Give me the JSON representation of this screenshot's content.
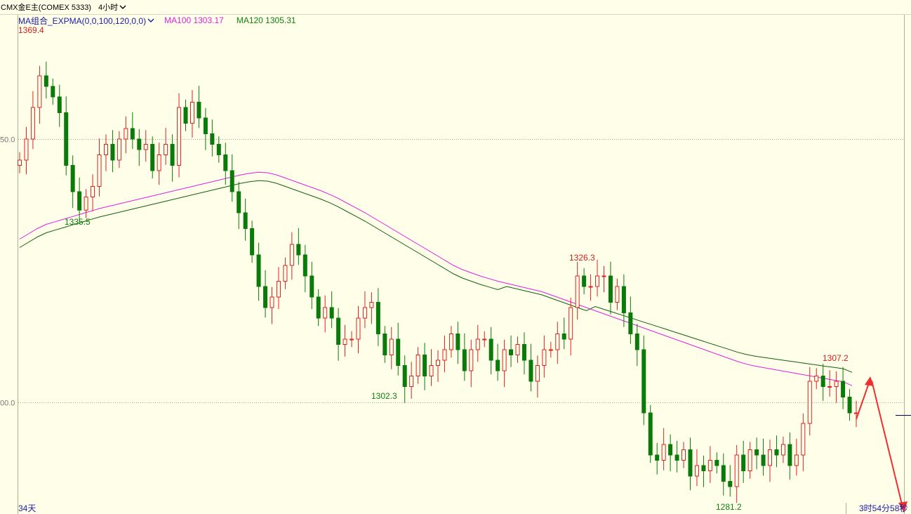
{
  "title_bar": {
    "symbol": "CMX金E主(COMEX 5333)",
    "period": "4小时"
  },
  "legend": {
    "indicator": "MA组合_EXPMA(0,0,100,120,0,0)",
    "ma100": "MA100 1303.17",
    "ma120": "MA120 1305.31"
  },
  "bottom": {
    "days": "34天",
    "countdown": "3时54分58秒"
  },
  "colors": {
    "background": "#ffffe9",
    "up_candle": "#e02020",
    "down_candle": "#0a7a0a",
    "ma100": "#e020e0",
    "ma120": "#106010",
    "annotation_arrow": "#ee3030"
  },
  "chart_data": {
    "type": "candlestick",
    "y_axis_ticks": [
      "50.0",
      "00.0"
    ],
    "ylim": [
      1276,
      1380
    ],
    "annotations": [
      {
        "label": "1369.4",
        "kind": "high"
      },
      {
        "label": "1335.5",
        "kind": "low"
      },
      {
        "label": "1326.3",
        "kind": "high"
      },
      {
        "label": "1302.3",
        "kind": "low"
      },
      {
        "label": "1307.2",
        "kind": "high"
      },
      {
        "label": "1281.2",
        "kind": "low"
      }
    ],
    "closes": [
      1346.0,
      1350.0,
      1356.0,
      1362.0,
      1360.0,
      1358.0,
      1355.0,
      1345.0,
      1340.0,
      1336.5,
      1339.0,
      1341.0,
      1347.0,
      1349.0,
      1346.0,
      1350.0,
      1352.0,
      1350.0,
      1348.0,
      1349.0,
      1344.0,
      1347.0,
      1349.0,
      1345.0,
      1356.0,
      1353.0,
      1357.0,
      1354.0,
      1351.0,
      1349.0,
      1347.0,
      1344.0,
      1340.0,
      1336.0,
      1333.0,
      1328.0,
      1322.0,
      1318.0,
      1320.0,
      1323.0,
      1326.0,
      1330.0,
      1328.0,
      1324.0,
      1320.0,
      1316.0,
      1318.0,
      1316.0,
      1311.0,
      1312.0,
      1312.0,
      1316.0,
      1318.0,
      1319.0,
      1313.0,
      1309.0,
      1312.0,
      1307.0,
      1303.0,
      1305.0,
      1309.0,
      1305.0,
      1307.0,
      1308.0,
      1310.0,
      1313.0,
      1310.0,
      1306.0,
      1310.0,
      1312.0,
      1312.0,
      1308.0,
      1306.0,
      1310.0,
      1309.0,
      1311.0,
      1308.0,
      1304.0,
      1307.0,
      1310.0,
      1310.0,
      1313.0,
      1312.0,
      1318.0,
      1324.0,
      1322.0,
      1322.0,
      1324.0,
      1324.0,
      1319.0,
      1322.0,
      1317.0,
      1313.0,
      1310.0,
      1298.0,
      1290.0,
      1289.0,
      1292.0,
      1290.0,
      1289.0,
      1291.0,
      1286.0,
      1288.0,
      1287.0,
      1289.0,
      1288.0,
      1285.0,
      1284.0,
      1290.0,
      1287.0,
      1291.0,
      1290.0,
      1288.0,
      1291.0,
      1290.0,
      1292.0,
      1288.0,
      1290.0,
      1296.0,
      1304.0,
      1305.0,
      1303.0,
      1303.0,
      1304.0,
      1301.0,
      1298.0,
      1298.0
    ],
    "ma100": [
      1331.0,
      1332.0,
      1333.0,
      1333.8,
      1334.3,
      1334.8,
      1335.3,
      1335.8,
      1336.3,
      1336.8,
      1337.2,
      1337.6,
      1338.0,
      1338.4,
      1338.8,
      1339.2,
      1339.6,
      1340.0,
      1340.4,
      1340.8,
      1341.2,
      1341.6,
      1342.0,
      1342.4,
      1342.8,
      1343.2,
      1343.5,
      1343.7,
      1343.6,
      1343.2,
      1342.6,
      1342.0,
      1341.4,
      1340.8,
      1340.2,
      1339.5,
      1338.7,
      1337.8,
      1336.9,
      1336.0,
      1335.0,
      1334.0,
      1333.0,
      1332.0,
      1331.0,
      1330.0,
      1329.0,
      1328.0,
      1327.0,
      1326.0,
      1325.2,
      1324.6,
      1324.0,
      1323.5,
      1323.0,
      1322.6,
      1322.2,
      1321.8,
      1321.4,
      1321.0,
      1320.4,
      1319.8,
      1319.2,
      1318.6,
      1318.0,
      1317.4,
      1316.8,
      1316.2,
      1315.6,
      1315.0,
      1314.4,
      1313.8,
      1313.2,
      1312.6,
      1312.0,
      1311.4,
      1310.8,
      1310.2,
      1309.6,
      1309.0,
      1308.4,
      1307.8,
      1307.3,
      1306.9,
      1306.6,
      1306.3,
      1306.0,
      1305.7,
      1305.4,
      1305.1,
      1304.8,
      1304.5,
      1304.2,
      1303.9,
      1303.17
    ]
  }
}
